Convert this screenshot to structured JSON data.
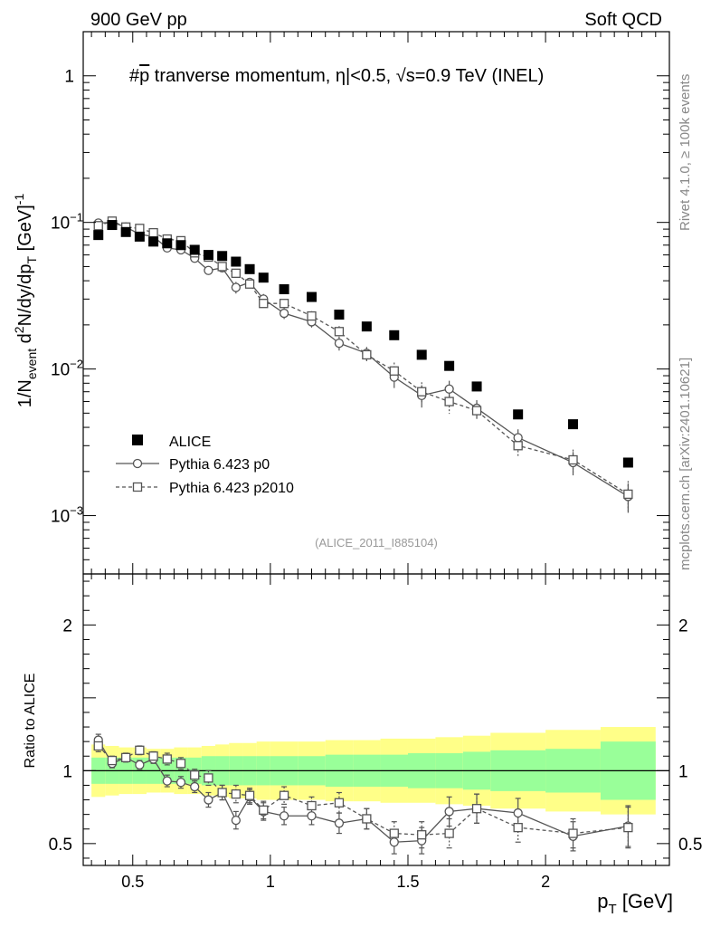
{
  "header": {
    "left": "900 GeV pp",
    "right": "Soft QCD"
  },
  "title": {
    "hash": "#",
    "pbar": "p",
    "main": " tranverse momentum, ",
    "eta": "η|<0.5, ",
    "sqrt": "√",
    "s_part": "s=0.9 TeV (INEL)"
  },
  "side_text": {
    "rivet": "Rivet 4.1.0, ≥ 100k events",
    "mcplots": "mcplots.cern.ch [arXiv:2401.10621]"
  },
  "watermark": "(ALICE_2011_I885104)",
  "y_label_main": {
    "prefix": "1/N",
    "sub_event": "event",
    "d": " d",
    "sup_2": "2",
    "mid": "N/dy/dp",
    "sub_T": "T",
    "unit": " [GeV]",
    "sup_m1": "-1"
  },
  "y_label_ratio": "Ratio to ALICE",
  "x_label": {
    "p": "p",
    "sub_T": "T",
    "unit": " [GeV]"
  },
  "colors": {
    "data": "#000000",
    "mc": "#555555",
    "band_inner": "#99ff99",
    "band_outer": "#ffff88"
  },
  "chart_data": {
    "type": "scatter",
    "x_range": [
      0.32,
      2.45
    ],
    "main_ylim": [
      0.0004,
      2.0
    ],
    "main_yscale": "log",
    "ratio_ylim": [
      0.35,
      2.35
    ],
    "x_ticks": [
      {
        "v": 0.5,
        "label": "0.5"
      },
      {
        "v": 1.0,
        "label": "1"
      },
      {
        "v": 1.5,
        "label": "1.5"
      },
      {
        "v": 2.0,
        "label": "2"
      }
    ],
    "main_y_ticks": [
      {
        "v": 1.0,
        "base": "1",
        "exp": ""
      },
      {
        "v": 0.1,
        "base": "10",
        "exp": "−1"
      },
      {
        "v": 0.01,
        "base": "10",
        "exp": "−2"
      },
      {
        "v": 0.001,
        "base": "10",
        "exp": "−3"
      }
    ],
    "ratio_y_ticks": [
      {
        "v": 2.0,
        "label": "2"
      },
      {
        "v": 1.0,
        "label": "1"
      },
      {
        "v": 0.5,
        "label": "0.5"
      }
    ],
    "legend": [
      {
        "name": "ALICE",
        "marker": "square-filled"
      },
      {
        "name": "Pythia 6.423 p0",
        "marker": "circle-open",
        "line": "solid"
      },
      {
        "name": "Pythia 6.423 p2010",
        "marker": "square-open",
        "line": "dashed"
      }
    ],
    "series": [
      {
        "name": "ALICE",
        "x": [
          0.375,
          0.425,
          0.475,
          0.525,
          0.575,
          0.625,
          0.675,
          0.725,
          0.775,
          0.825,
          0.875,
          0.925,
          0.975,
          1.05,
          1.15,
          1.25,
          1.35,
          1.45,
          1.55,
          1.65,
          1.75,
          1.9,
          2.1,
          2.3
        ],
        "y": [
          0.082,
          0.096,
          0.086,
          0.08,
          0.074,
          0.072,
          0.07,
          0.065,
          0.06,
          0.059,
          0.054,
          0.048,
          0.042,
          0.035,
          0.031,
          0.0235,
          0.0195,
          0.017,
          0.0125,
          0.0105,
          0.0076,
          0.0049,
          0.0042,
          0.0023
        ]
      },
      {
        "name": "Pythia 6.423 p0",
        "x": [
          0.375,
          0.425,
          0.475,
          0.525,
          0.575,
          0.625,
          0.675,
          0.725,
          0.775,
          0.825,
          0.875,
          0.925,
          0.975,
          1.05,
          1.15,
          1.25,
          1.35,
          1.45,
          1.55,
          1.65,
          1.75,
          1.9,
          2.1,
          2.3
        ],
        "y": [
          0.099,
          0.1,
          0.093,
          0.083,
          0.08,
          0.067,
          0.065,
          0.057,
          0.047,
          0.049,
          0.036,
          0.039,
          0.03,
          0.024,
          0.021,
          0.015,
          0.0128,
          0.0088,
          0.0066,
          0.0073,
          0.0054,
          0.0034,
          0.0023,
          0.00135
        ],
        "ratio": [
          1.21,
          1.05,
          1.09,
          1.04,
          1.08,
          0.93,
          0.92,
          0.89,
          0.8,
          0.85,
          0.66,
          0.82,
          0.72,
          0.69,
          0.69,
          0.64,
          0.67,
          0.51,
          0.52,
          0.72,
          0.74,
          0.71,
          0.55,
          0.62
        ],
        "ratio_err": [
          0.04,
          0.03,
          0.03,
          0.03,
          0.03,
          0.04,
          0.04,
          0.04,
          0.05,
          0.05,
          0.06,
          0.05,
          0.06,
          0.06,
          0.06,
          0.07,
          0.07,
          0.08,
          0.09,
          0.1,
          0.1,
          0.1,
          0.1,
          0.14
        ]
      },
      {
        "name": "Pythia 6.423 p2010",
        "x": [
          0.375,
          0.425,
          0.475,
          0.525,
          0.575,
          0.625,
          0.675,
          0.725,
          0.775,
          0.825,
          0.875,
          0.925,
          0.975,
          1.05,
          1.15,
          1.25,
          1.35,
          1.45,
          1.55,
          1.65,
          1.75,
          1.9,
          2.1,
          2.3
        ],
        "y": [
          0.095,
          0.102,
          0.093,
          0.091,
          0.085,
          0.077,
          0.075,
          0.062,
          0.058,
          0.05,
          0.045,
          0.038,
          0.028,
          0.028,
          0.023,
          0.018,
          0.0125,
          0.0097,
          0.007,
          0.006,
          0.0052,
          0.003,
          0.0024,
          0.0014
        ],
        "ratio": [
          1.17,
          1.07,
          1.09,
          1.14,
          1.1,
          1.08,
          1.05,
          0.97,
          0.95,
          0.85,
          0.84,
          0.83,
          0.73,
          0.83,
          0.76,
          0.78,
          0.67,
          0.57,
          0.56,
          0.57,
          0.74,
          0.61,
          0.57,
          0.61
        ],
        "ratio_err": [
          0.04,
          0.03,
          0.03,
          0.03,
          0.03,
          0.04,
          0.04,
          0.04,
          0.05,
          0.05,
          0.06,
          0.05,
          0.06,
          0.06,
          0.06,
          0.07,
          0.07,
          0.08,
          0.09,
          0.1,
          0.1,
          0.1,
          0.1,
          0.14
        ]
      }
    ],
    "ratio_band": {
      "edges": [
        0.35,
        0.4,
        0.45,
        0.5,
        0.55,
        0.6,
        0.65,
        0.7,
        0.75,
        0.8,
        0.85,
        0.9,
        0.95,
        1.0,
        1.1,
        1.2,
        1.3,
        1.4,
        1.5,
        1.6,
        1.7,
        1.8,
        2.0,
        2.2,
        2.4
      ],
      "inner": [
        0.09,
        0.09,
        0.09,
        0.09,
        0.09,
        0.09,
        0.09,
        0.09,
        0.1,
        0.1,
        0.1,
        0.1,
        0.1,
        0.1,
        0.1,
        0.11,
        0.11,
        0.11,
        0.12,
        0.12,
        0.13,
        0.14,
        0.15,
        0.2
      ],
      "outer": [
        0.18,
        0.17,
        0.16,
        0.16,
        0.15,
        0.15,
        0.16,
        0.16,
        0.17,
        0.18,
        0.19,
        0.19,
        0.2,
        0.2,
        0.2,
        0.21,
        0.21,
        0.22,
        0.22,
        0.23,
        0.24,
        0.26,
        0.28,
        0.3
      ]
    }
  }
}
